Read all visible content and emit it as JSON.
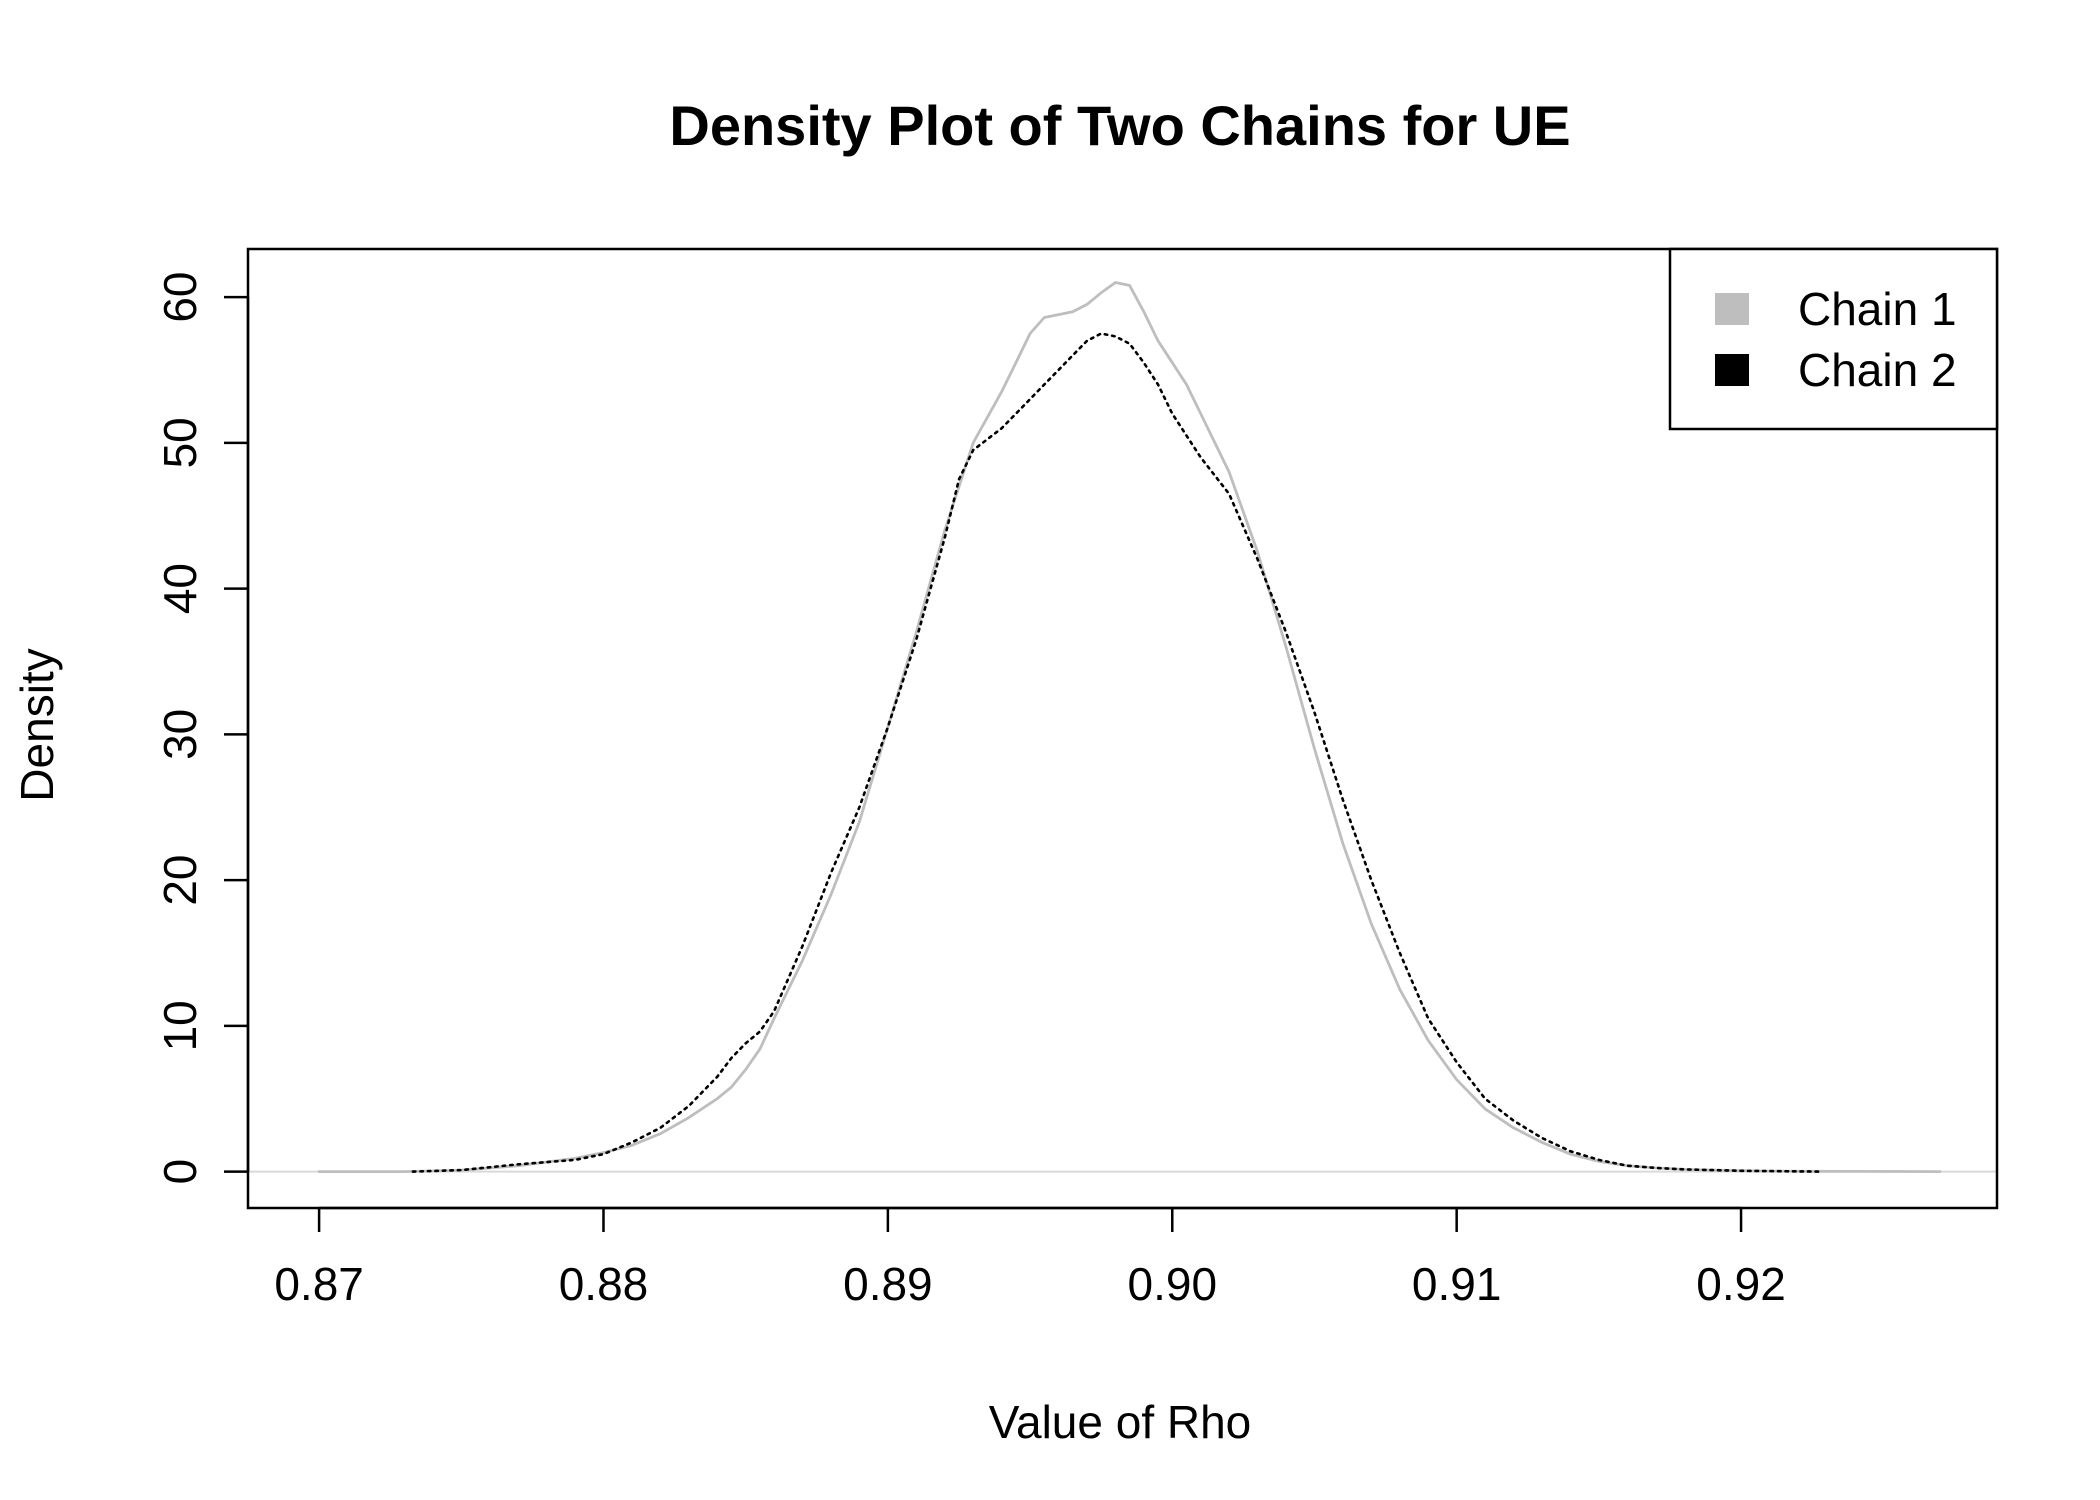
{
  "chart_data": {
    "type": "line",
    "title": "Density Plot of Two Chains for UE",
    "xlabel": "Value of Rho",
    "ylabel": "Density",
    "xlim": [
      0.8675,
      0.929
    ],
    "ylim": [
      -2.5,
      63.3
    ],
    "x_ticks": [
      0.87,
      0.88,
      0.89,
      0.9,
      0.91,
      0.92
    ],
    "x_tick_labels": [
      "0.87",
      "0.88",
      "0.89",
      "0.90",
      "0.91",
      "0.92"
    ],
    "y_ticks": [
      0,
      10,
      20,
      30,
      40,
      50,
      60
    ],
    "y_tick_labels": [
      "0",
      "10",
      "20",
      "30",
      "40",
      "50",
      "60"
    ],
    "baseline": {
      "y": 0,
      "color": "#d9d9d9"
    },
    "legend": {
      "position": "top-right",
      "entries": [
        {
          "label": "Chain 1",
          "color": "#bebebe"
        },
        {
          "label": "Chain 2",
          "color": "#000000"
        }
      ]
    },
    "series": [
      {
        "name": "Chain 1",
        "color": "#bebebe",
        "style": "solid",
        "points": [
          [
            0.87,
            0.0
          ],
          [
            0.873,
            0.0
          ],
          [
            0.875,
            0.1
          ],
          [
            0.877,
            0.4
          ],
          [
            0.879,
            0.9
          ],
          [
            0.88,
            1.3
          ],
          [
            0.881,
            1.8
          ],
          [
            0.882,
            2.6
          ],
          [
            0.883,
            3.7
          ],
          [
            0.884,
            5.0
          ],
          [
            0.8845,
            5.8
          ],
          [
            0.885,
            7.0
          ],
          [
            0.8855,
            8.4
          ],
          [
            0.886,
            10.5
          ],
          [
            0.887,
            14.5
          ],
          [
            0.888,
            19.0
          ],
          [
            0.889,
            24.0
          ],
          [
            0.89,
            30.5
          ],
          [
            0.891,
            37.0
          ],
          [
            0.892,
            44.0
          ],
          [
            0.893,
            50.0
          ],
          [
            0.894,
            53.5
          ],
          [
            0.8945,
            55.5
          ],
          [
            0.895,
            57.5
          ],
          [
            0.8955,
            58.6
          ],
          [
            0.896,
            58.8
          ],
          [
            0.8965,
            59.0
          ],
          [
            0.897,
            59.5
          ],
          [
            0.8975,
            60.3
          ],
          [
            0.898,
            61.0
          ],
          [
            0.8985,
            60.8
          ],
          [
            0.899,
            59.0
          ],
          [
            0.8995,
            57.0
          ],
          [
            0.9,
            55.5
          ],
          [
            0.9005,
            54.0
          ],
          [
            0.901,
            52.0
          ],
          [
            0.902,
            48.0
          ],
          [
            0.903,
            42.5
          ],
          [
            0.904,
            36.0
          ],
          [
            0.905,
            29.0
          ],
          [
            0.906,
            22.5
          ],
          [
            0.907,
            17.0
          ],
          [
            0.908,
            12.5
          ],
          [
            0.909,
            9.0
          ],
          [
            0.91,
            6.3
          ],
          [
            0.911,
            4.3
          ],
          [
            0.912,
            3.0
          ],
          [
            0.913,
            2.0
          ],
          [
            0.914,
            1.2
          ],
          [
            0.915,
            0.7
          ],
          [
            0.916,
            0.4
          ],
          [
            0.917,
            0.25
          ],
          [
            0.918,
            0.15
          ],
          [
            0.919,
            0.1
          ],
          [
            0.92,
            0.06
          ],
          [
            0.921,
            0.03
          ],
          [
            0.922,
            0.02
          ],
          [
            0.924,
            0.01
          ],
          [
            0.927,
            0.0
          ]
        ]
      },
      {
        "name": "Chain 2",
        "color": "#000000",
        "style": "dotted",
        "points": [
          [
            0.8733,
            0.0
          ],
          [
            0.875,
            0.1
          ],
          [
            0.877,
            0.5
          ],
          [
            0.879,
            0.8
          ],
          [
            0.88,
            1.2
          ],
          [
            0.881,
            2.0
          ],
          [
            0.882,
            3.0
          ],
          [
            0.883,
            4.5
          ],
          [
            0.884,
            6.5
          ],
          [
            0.8845,
            7.8
          ],
          [
            0.885,
            8.8
          ],
          [
            0.8855,
            9.6
          ],
          [
            0.886,
            11.0
          ],
          [
            0.887,
            15.5
          ],
          [
            0.888,
            20.5
          ],
          [
            0.889,
            25.0
          ],
          [
            0.89,
            30.5
          ],
          [
            0.891,
            36.5
          ],
          [
            0.892,
            43.5
          ],
          [
            0.8925,
            47.5
          ],
          [
            0.893,
            49.5
          ],
          [
            0.894,
            51.0
          ],
          [
            0.8945,
            52.0
          ],
          [
            0.895,
            53.0
          ],
          [
            0.8955,
            54.0
          ],
          [
            0.896,
            55.0
          ],
          [
            0.8965,
            56.0
          ],
          [
            0.897,
            57.0
          ],
          [
            0.8975,
            57.5
          ],
          [
            0.898,
            57.3
          ],
          [
            0.8985,
            56.8
          ],
          [
            0.899,
            55.5
          ],
          [
            0.8995,
            54.0
          ],
          [
            0.9,
            52.0
          ],
          [
            0.9005,
            50.5
          ],
          [
            0.901,
            49.0
          ],
          [
            0.902,
            46.5
          ],
          [
            0.903,
            42.0
          ],
          [
            0.904,
            37.0
          ],
          [
            0.905,
            31.5
          ],
          [
            0.906,
            25.5
          ],
          [
            0.907,
            20.0
          ],
          [
            0.908,
            15.0
          ],
          [
            0.909,
            10.5
          ],
          [
            0.91,
            7.5
          ],
          [
            0.911,
            5.0
          ],
          [
            0.912,
            3.5
          ],
          [
            0.913,
            2.3
          ],
          [
            0.914,
            1.4
          ],
          [
            0.915,
            0.8
          ],
          [
            0.916,
            0.4
          ],
          [
            0.917,
            0.25
          ],
          [
            0.918,
            0.15
          ],
          [
            0.919,
            0.1
          ],
          [
            0.92,
            0.05
          ],
          [
            0.9228,
            0.0
          ]
        ]
      }
    ]
  }
}
